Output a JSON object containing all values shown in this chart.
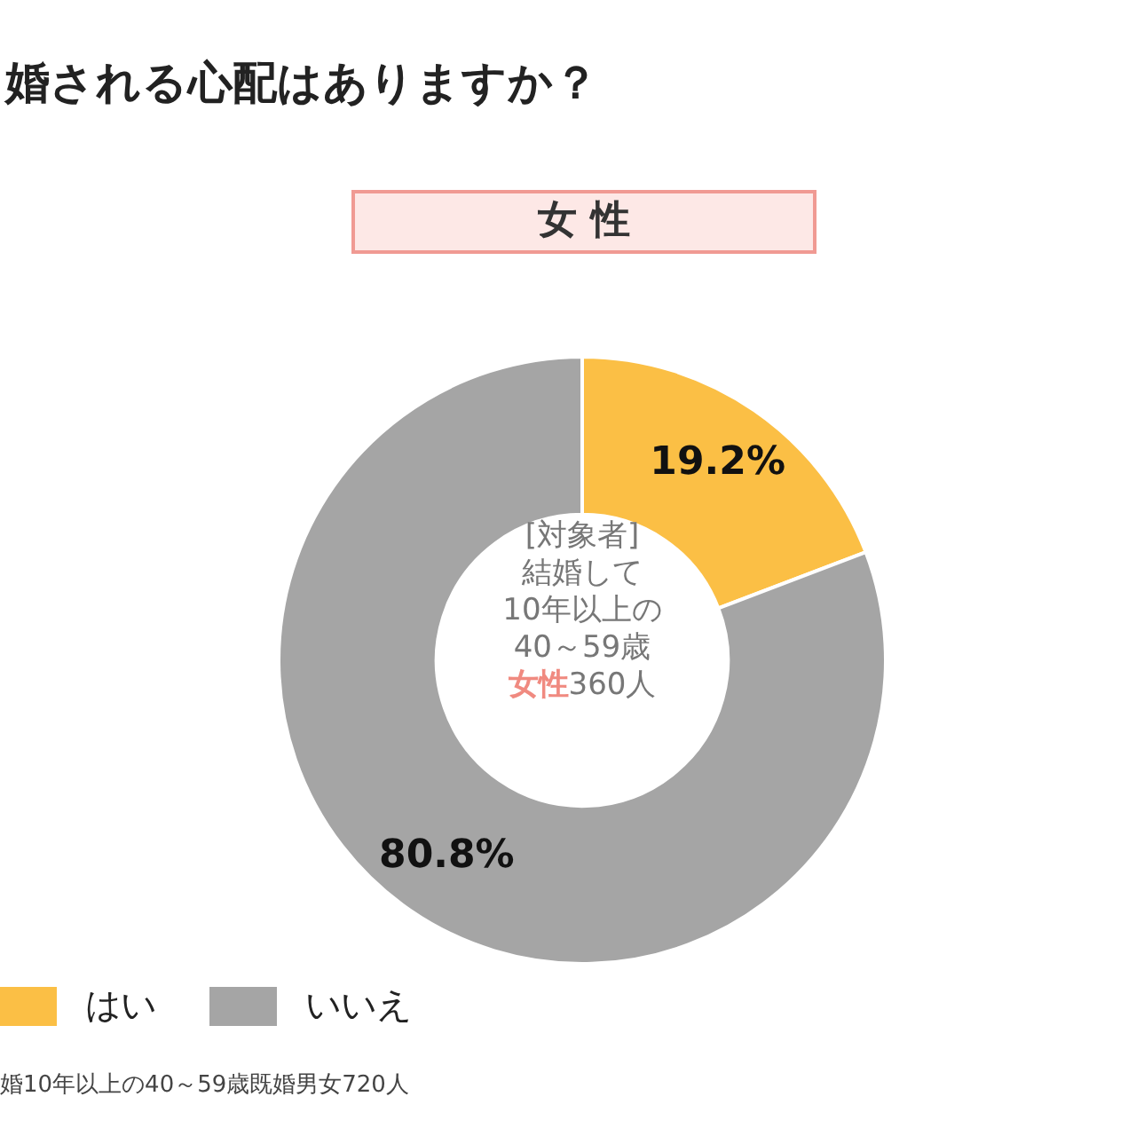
{
  "chart_data": {
    "type": "donut",
    "title": "婚される心配はありますか？",
    "subtitle": "女 性",
    "categories": [
      "はい",
      "いいえ"
    ],
    "values": [
      19.2,
      80.8
    ],
    "colors": [
      "#fbbf45",
      "#a5a5a5"
    ],
    "value_labels": [
      "19.2%",
      "80.8%"
    ],
    "legend": "bottom left",
    "annotations": [
      "[対象者]",
      "結婚して",
      "10年以上の",
      "40～59歳",
      "女性360人",
      "婚10年以上の40～59歳既婚男女720人"
    ]
  }
}
